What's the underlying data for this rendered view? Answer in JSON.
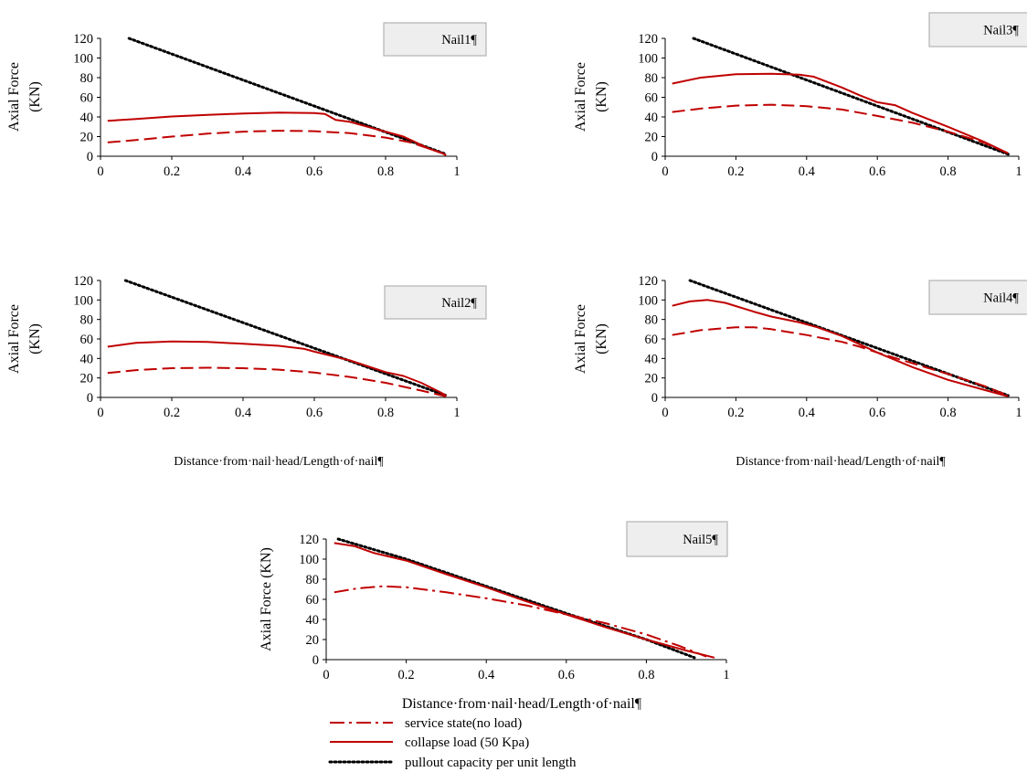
{
  "colors": {
    "red": "#c00000",
    "black": "#000000",
    "tag_fill": "#eeeeee",
    "tag_border": "#b3b3b3"
  },
  "legend": [
    {
      "label": "service state(no load)",
      "style": "dashdot",
      "color": "#c00000"
    },
    {
      "label": "collapse load (50 Kpa)",
      "style": "solid",
      "color": "#c00000"
    },
    {
      "label": "pullout capacity per unit length",
      "style": "dotted",
      "color": "#000000"
    }
  ],
  "chart_data": [
    {
      "type": "line",
      "tag": "Nail1¶",
      "ylabel": [
        "Axial Force",
        "(KN)"
      ],
      "xlabel": "",
      "xlim": [
        0,
        1
      ],
      "ylim": [
        0,
        120
      ],
      "xticks": [
        "0",
        "0.2",
        "0.4",
        "0.6",
        "0.8",
        "1"
      ],
      "yticks": [
        "0",
        "20",
        "40",
        "60",
        "80",
        "100",
        "120"
      ],
      "series": [
        {
          "style": "dotted",
          "color": "#000000",
          "points": [
            [
              0.08,
              120
            ],
            [
              0.97,
              2
            ]
          ]
        },
        {
          "style": "solid",
          "color": "#c00000",
          "points": [
            [
              0.02,
              36
            ],
            [
              0.1,
              38
            ],
            [
              0.2,
              40.5
            ],
            [
              0.3,
              42
            ],
            [
              0.4,
              43.5
            ],
            [
              0.5,
              44.5
            ],
            [
              0.6,
              44
            ],
            [
              0.63,
              43
            ],
            [
              0.66,
              37
            ],
            [
              0.7,
              35
            ],
            [
              0.75,
              30
            ],
            [
              0.8,
              25
            ],
            [
              0.85,
              20
            ],
            [
              0.88,
              15
            ],
            [
              0.92,
              8
            ],
            [
              0.96,
              3
            ],
            [
              0.97,
              1
            ]
          ]
        },
        {
          "style": "dashed",
          "color": "#c00000",
          "points": [
            [
              0.02,
              14
            ],
            [
              0.1,
              16.5
            ],
            [
              0.2,
              20
            ],
            [
              0.3,
              23
            ],
            [
              0.4,
              25
            ],
            [
              0.5,
              26
            ],
            [
              0.6,
              25.5
            ],
            [
              0.7,
              23.5
            ],
            [
              0.8,
              19
            ],
            [
              0.87,
              14
            ],
            [
              0.92,
              8
            ],
            [
              0.96,
              3
            ],
            [
              0.97,
              1
            ]
          ]
        }
      ]
    },
    {
      "type": "line",
      "tag": "Nail3¶",
      "ylabel": [
        "Axial Force",
        "(KN)"
      ],
      "xlabel": "",
      "xlim": [
        0,
        1
      ],
      "ylim": [
        0,
        120
      ],
      "xticks": [
        "0",
        "0.2",
        "0.4",
        "0.6",
        "0.8",
        "1"
      ],
      "yticks": [
        "0",
        "20",
        "40",
        "60",
        "80",
        "100",
        "120"
      ],
      "series": [
        {
          "style": "dotted",
          "color": "#000000",
          "points": [
            [
              0.08,
              120
            ],
            [
              0.97,
              2
            ]
          ]
        },
        {
          "style": "solid",
          "color": "#c00000",
          "points": [
            [
              0.02,
              74
            ],
            [
              0.1,
              80
            ],
            [
              0.2,
              83.5
            ],
            [
              0.3,
              84
            ],
            [
              0.38,
              83
            ],
            [
              0.42,
              81
            ],
            [
              0.5,
              70
            ],
            [
              0.55,
              62
            ],
            [
              0.6,
              55
            ],
            [
              0.65,
              52
            ],
            [
              0.7,
              44
            ],
            [
              0.8,
              30
            ],
            [
              0.9,
              15
            ],
            [
              0.97,
              3
            ]
          ]
        },
        {
          "style": "dashed",
          "color": "#c00000",
          "points": [
            [
              0.02,
              45
            ],
            [
              0.1,
              48.5
            ],
            [
              0.2,
              51.5
            ],
            [
              0.3,
              52.5
            ],
            [
              0.4,
              51
            ],
            [
              0.5,
              47.5
            ],
            [
              0.6,
              41
            ],
            [
              0.7,
              34
            ],
            [
              0.8,
              25
            ],
            [
              0.9,
              14
            ],
            [
              0.97,
              3
            ]
          ]
        }
      ]
    },
    {
      "type": "line",
      "tag": "Nail2¶",
      "ylabel": [
        "Axial Force",
        "(KN)"
      ],
      "xlabel": "Distance·from·nail·head/Length·of·nail¶",
      "xlim": [
        0,
        1
      ],
      "ylim": [
        0,
        120
      ],
      "xticks": [
        "0",
        "0.2",
        "0.4",
        "0.6",
        "0.8",
        "1"
      ],
      "yticks": [
        "0",
        "20",
        "40",
        "60",
        "80",
        "100",
        "120"
      ],
      "series": [
        {
          "style": "dotted",
          "color": "#000000",
          "points": [
            [
              0.07,
              120
            ],
            [
              0.97,
              2
            ]
          ]
        },
        {
          "style": "solid",
          "color": "#c00000",
          "points": [
            [
              0.02,
              52
            ],
            [
              0.1,
              56
            ],
            [
              0.2,
              57.5
            ],
            [
              0.3,
              57
            ],
            [
              0.4,
              55
            ],
            [
              0.5,
              53
            ],
            [
              0.57,
              50
            ],
            [
              0.6,
              47
            ],
            [
              0.7,
              38
            ],
            [
              0.8,
              26
            ],
            [
              0.85,
              22
            ],
            [
              0.9,
              15
            ],
            [
              0.95,
              6
            ],
            [
              0.97,
              2
            ]
          ]
        },
        {
          "style": "dashed",
          "color": "#c00000",
          "points": [
            [
              0.02,
              25
            ],
            [
              0.1,
              28
            ],
            [
              0.2,
              30
            ],
            [
              0.3,
              30.5
            ],
            [
              0.4,
              30
            ],
            [
              0.5,
              28.5
            ],
            [
              0.6,
              25.5
            ],
            [
              0.7,
              21
            ],
            [
              0.8,
              15
            ],
            [
              0.9,
              7
            ],
            [
              0.97,
              1
            ]
          ]
        }
      ]
    },
    {
      "type": "line",
      "tag": "Nail4¶",
      "ylabel": [
        "Axial Force",
        "(KN)"
      ],
      "xlabel": "Distance·from·nail·head/Length·of·nail¶",
      "xlim": [
        0,
        1
      ],
      "ylim": [
        0,
        120
      ],
      "xticks": [
        "0",
        "0.2",
        "0.4",
        "0.6",
        "0.8",
        "1"
      ],
      "yticks": [
        "0",
        "20",
        "40",
        "60",
        "80",
        "100",
        "120"
      ],
      "series": [
        {
          "style": "dotted",
          "color": "#000000",
          "points": [
            [
              0.07,
              120
            ],
            [
              0.97,
              2
            ]
          ]
        },
        {
          "style": "solid",
          "color": "#c00000",
          "points": [
            [
              0.02,
              94
            ],
            [
              0.07,
              98.5
            ],
            [
              0.12,
              100
            ],
            [
              0.17,
              97
            ],
            [
              0.25,
              88
            ],
            [
              0.3,
              83
            ],
            [
              0.38,
              77
            ],
            [
              0.43,
              72
            ],
            [
              0.5,
              63
            ],
            [
              0.6,
              46
            ],
            [
              0.7,
              31
            ],
            [
              0.8,
              18
            ],
            [
              0.9,
              8
            ],
            [
              0.97,
              1
            ]
          ]
        },
        {
          "style": "dashed",
          "color": "#c00000",
          "points": [
            [
              0.02,
              64
            ],
            [
              0.1,
              69
            ],
            [
              0.2,
              72
            ],
            [
              0.25,
              72
            ],
            [
              0.3,
              70
            ],
            [
              0.4,
              64
            ],
            [
              0.5,
              57
            ],
            [
              0.55,
              52
            ],
            [
              0.6,
              46
            ],
            [
              0.7,
              35
            ],
            [
              0.8,
              24
            ],
            [
              0.9,
              12
            ],
            [
              0.97,
              2
            ]
          ]
        }
      ]
    },
    {
      "type": "line",
      "tag": "Nail5¶",
      "ylabel": [
        "Axial Force (KN)"
      ],
      "xlabel": "Distance·from·nail·head/Length·of·nail¶",
      "xlim": [
        0,
        1
      ],
      "ylim": [
        0,
        120
      ],
      "xticks": [
        "0",
        "0.2",
        "0.4",
        "0.6",
        "0.8",
        "1"
      ],
      "yticks": [
        "0",
        "20",
        "40",
        "60",
        "80",
        "100",
        "120"
      ],
      "series": [
        {
          "style": "dotted",
          "color": "#000000",
          "points": [
            [
              0.03,
              120
            ],
            [
              0.2,
              100
            ],
            [
              0.4,
              73
            ],
            [
              0.6,
              46
            ],
            [
              0.8,
              20
            ],
            [
              0.92,
              2
            ]
          ]
        },
        {
          "style": "solid",
          "color": "#c00000",
          "points": [
            [
              0.02,
              116
            ],
            [
              0.07,
              113
            ],
            [
              0.12,
              106
            ],
            [
              0.2,
              98.5
            ],
            [
              0.3,
              85
            ],
            [
              0.4,
              72
            ],
            [
              0.5,
              58
            ],
            [
              0.6,
              45
            ],
            [
              0.7,
              32
            ],
            [
              0.8,
              20
            ],
            [
              0.9,
              9
            ],
            [
              0.97,
              2
            ]
          ]
        },
        {
          "style": "dashdot",
          "color": "#c00000",
          "points": [
            [
              0.02,
              67
            ],
            [
              0.08,
              71
            ],
            [
              0.14,
              73
            ],
            [
              0.2,
              72
            ],
            [
              0.3,
              67
            ],
            [
              0.4,
              61
            ],
            [
              0.5,
              54
            ],
            [
              0.6,
              45
            ],
            [
              0.7,
              36
            ],
            [
              0.8,
              25
            ],
            [
              0.88,
              14
            ],
            [
              0.95,
              3
            ]
          ]
        }
      ]
    }
  ]
}
